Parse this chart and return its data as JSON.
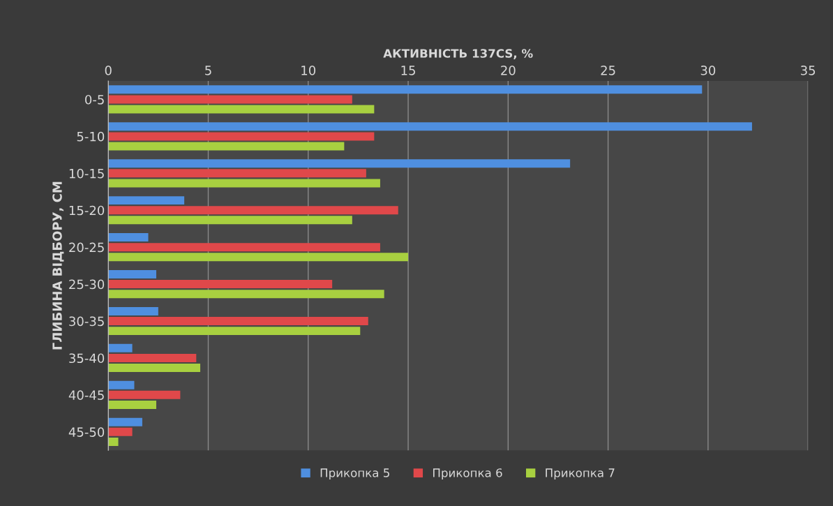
{
  "chart_data": {
    "type": "bar",
    "orientation": "horizontal",
    "xlabel": "АКТИВНІСТЬ 137CS, %",
    "ylabel": "ГЛИБИНА ВІДБОРУ, СМ",
    "categories": [
      "0-5",
      "5-10",
      "10-15",
      "15-20",
      "20-25",
      "25-30",
      "30-35",
      "35-40",
      "40-45",
      "45-50"
    ],
    "series": [
      {
        "name": "Прикопка 5",
        "color": "#4f8fe0",
        "values": [
          29.7,
          32.2,
          23.1,
          3.8,
          2.0,
          2.4,
          2.5,
          1.2,
          1.3,
          1.7
        ]
      },
      {
        "name": "Прикопка 6",
        "color": "#e0484a",
        "values": [
          12.2,
          13.3,
          12.9,
          14.5,
          13.6,
          11.2,
          13.0,
          4.4,
          3.6,
          1.2
        ]
      },
      {
        "name": "Прикопка 7",
        "color": "#a8d040",
        "values": [
          13.3,
          11.8,
          13.6,
          12.2,
          15.0,
          13.8,
          12.6,
          4.6,
          2.4,
          0.5
        ]
      }
    ],
    "xlim": [
      0,
      35
    ],
    "xticks": [
      0,
      5,
      10,
      15,
      20,
      25,
      30,
      35
    ],
    "grid": "x",
    "legend": "bottom"
  }
}
